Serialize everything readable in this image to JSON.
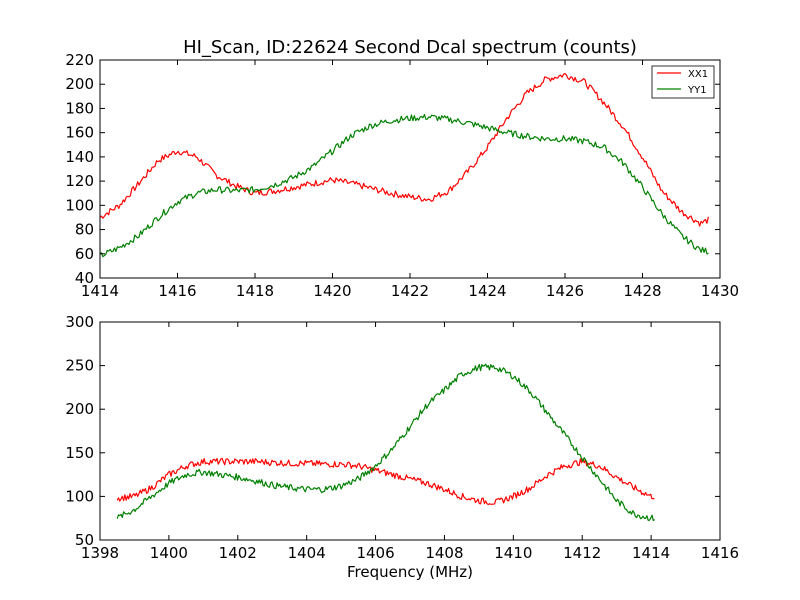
{
  "chart_data": [
    {
      "type": "line",
      "title": "HI_Scan, ID:22624 Second Dcal spectrum (counts)",
      "xlabel": "",
      "ylabel": "",
      "xlim": [
        1414,
        1430
      ],
      "ylim": [
        40,
        220
      ],
      "xticks": [
        1414,
        1416,
        1418,
        1420,
        1422,
        1424,
        1426,
        1428,
        1430
      ],
      "yticks": [
        40,
        60,
        80,
        100,
        120,
        140,
        160,
        180,
        200,
        220
      ],
      "grid": false,
      "legend": "top-right",
      "series": [
        {
          "name": "XX1",
          "color": "#ff0000",
          "x": [
            1414.0,
            1414.5,
            1415.0,
            1415.5,
            1416.0,
            1416.5,
            1417.0,
            1417.5,
            1418.0,
            1418.5,
            1419.0,
            1419.5,
            1420.0,
            1420.5,
            1421.0,
            1421.5,
            1422.0,
            1422.5,
            1423.0,
            1423.5,
            1424.0,
            1424.5,
            1425.0,
            1425.5,
            1426.0,
            1426.5,
            1427.0,
            1427.5,
            1428.0,
            1428.5,
            1429.0,
            1429.5,
            1429.7
          ],
          "y": [
            90,
            100,
            118,
            137,
            145,
            140,
            125,
            116,
            110,
            112,
            115,
            118,
            121,
            118,
            114,
            110,
            107,
            105,
            112,
            128,
            148,
            172,
            192,
            204,
            208,
            202,
            185,
            165,
            140,
            112,
            95,
            85,
            88
          ]
        },
        {
          "name": "YY1",
          "color": "#008000",
          "x": [
            1414.0,
            1414.5,
            1415.0,
            1415.5,
            1416.0,
            1416.5,
            1417.0,
            1417.5,
            1418.0,
            1418.5,
            1419.0,
            1419.5,
            1420.0,
            1420.5,
            1421.0,
            1421.5,
            1422.0,
            1422.5,
            1423.0,
            1423.5,
            1424.0,
            1424.5,
            1425.0,
            1425.5,
            1426.0,
            1426.5,
            1427.0,
            1427.5,
            1428.0,
            1428.5,
            1429.0,
            1429.5,
            1429.7
          ],
          "y": [
            58,
            65,
            75,
            90,
            103,
            110,
            113,
            112,
            113,
            117,
            123,
            132,
            145,
            158,
            166,
            170,
            172,
            173,
            171,
            168,
            164,
            160,
            157,
            155,
            155,
            153,
            148,
            135,
            115,
            93,
            75,
            63,
            62
          ]
        }
      ]
    },
    {
      "type": "line",
      "title": "",
      "xlabel": "Frequency (MHz)",
      "ylabel": "",
      "xlim": [
        1398,
        1416
      ],
      "ylim": [
        50,
        300
      ],
      "xticks": [
        1398,
        1400,
        1402,
        1404,
        1406,
        1408,
        1410,
        1412,
        1414,
        1416
      ],
      "yticks": [
        50,
        100,
        150,
        200,
        250,
        300
      ],
      "grid": false,
      "series": [
        {
          "color": "#ff0000",
          "x": [
            1398.5,
            1399.0,
            1399.5,
            1400.0,
            1400.5,
            1401.0,
            1401.5,
            1402.0,
            1402.5,
            1403.0,
            1403.5,
            1404.0,
            1404.5,
            1405.0,
            1405.5,
            1406.0,
            1406.5,
            1407.0,
            1407.5,
            1408.0,
            1408.5,
            1409.0,
            1409.5,
            1410.0,
            1410.5,
            1411.0,
            1411.5,
            1412.0,
            1412.5,
            1413.0,
            1413.5,
            1414.0,
            1414.1
          ],
          "y": [
            98,
            100,
            110,
            125,
            135,
            140,
            140,
            140,
            140,
            139,
            138,
            138,
            137,
            137,
            135,
            130,
            125,
            120,
            115,
            108,
            100,
            95,
            93,
            100,
            110,
            125,
            135,
            140,
            135,
            122,
            110,
            100,
            100
          ]
        },
        {
          "color": "#008000",
          "x": [
            1398.5,
            1399.0,
            1399.5,
            1400.0,
            1400.5,
            1401.0,
            1401.5,
            1402.0,
            1402.5,
            1403.0,
            1403.5,
            1404.0,
            1404.5,
            1405.0,
            1405.5,
            1406.0,
            1406.5,
            1407.0,
            1407.5,
            1408.0,
            1408.5,
            1409.0,
            1409.5,
            1410.0,
            1410.5,
            1411.0,
            1411.5,
            1412.0,
            1412.5,
            1413.0,
            1413.5,
            1414.0,
            1414.1
          ],
          "y": [
            75,
            85,
            100,
            115,
            125,
            128,
            125,
            122,
            118,
            113,
            110,
            108,
            108,
            112,
            120,
            135,
            155,
            180,
            205,
            222,
            240,
            248,
            248,
            238,
            220,
            195,
            170,
            145,
            120,
            95,
            80,
            75,
            75
          ]
        }
      ]
    }
  ]
}
